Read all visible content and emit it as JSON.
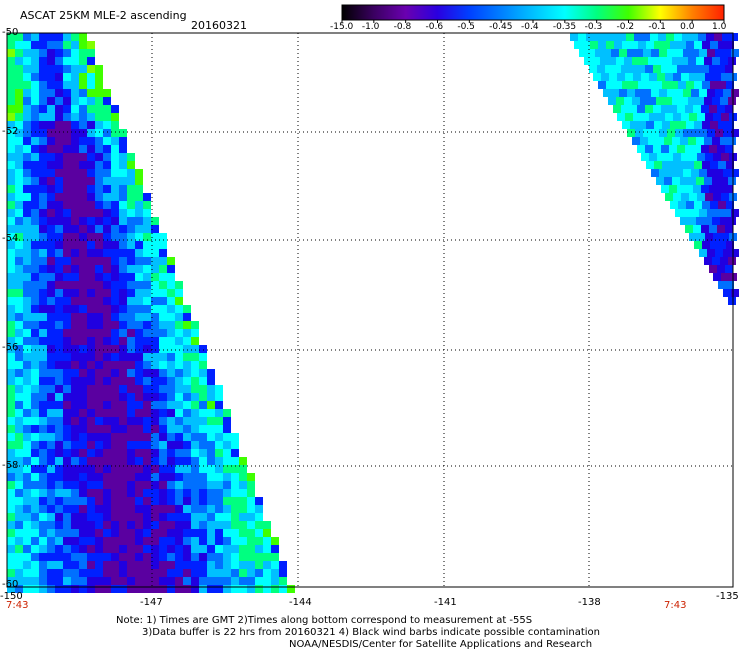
{
  "header": {
    "title": "ASCAT 25KM MLE-2 ascending",
    "date": "20160321"
  },
  "colorbar": {
    "labels": [
      "-15.0",
      "-1.0",
      "-0.8",
      "-0.6",
      "-0.5",
      "-0.45",
      "-0.4",
      "-0.35",
      "-0.3",
      "-0.2",
      "-0.1",
      "0.0",
      "1.0"
    ],
    "colors": [
      "#000000",
      "#3a0060",
      "#6a00b0",
      "#2a00e0",
      "#0040ff",
      "#0080ff",
      "#00c0ff",
      "#00ffff",
      "#00ff80",
      "#40ff00",
      "#ffff00",
      "#ff8000",
      "#ff2000"
    ]
  },
  "axes": {
    "lat_labels": [
      "-50",
      "-52",
      "-54",
      "-56",
      "-58",
      "-60"
    ],
    "lon_labels": [
      "-150",
      "-147",
      "-144",
      "-141",
      "-138",
      "-135"
    ],
    "lat_range": [
      -60,
      -50
    ],
    "lon_range": [
      -150,
      -135
    ]
  },
  "time_labels": {
    "left": "7:43",
    "right": "7:43"
  },
  "notes": {
    "line1": "Note: 1) Times are GMT 2)Times along bottom correspond to measurement at -55S",
    "line2": "3)Data buffer is 22 hrs from 20160321 4) Black wind barbs indicate possible contamination",
    "line3": "NOAA/NESDIS/Center for Satellite Applications and Research"
  }
}
